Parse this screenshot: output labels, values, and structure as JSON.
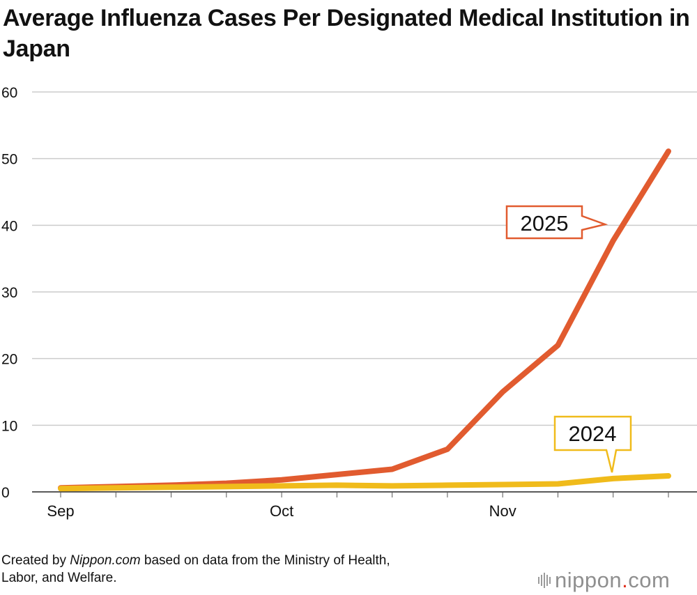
{
  "title": "Average Influenza Cases Per Designated Medical Institution in Japan",
  "source": {
    "prefix": "Created by ",
    "brand": "Nippon.com",
    "suffix_line1": " based on data from the Ministry of Health,",
    "line2": "Labor, and Welfare."
  },
  "logo": {
    "name": "nippon",
    "dot": ".",
    "tld": "com"
  },
  "colors": {
    "series_2025": "#e15b2f",
    "series_2024": "#f0bb1b",
    "grid": "#cccccc",
    "logo_dot": "#e0301e"
  },
  "chart_data": {
    "type": "line",
    "title": "Average Influenza Cases Per Designated Medical Institution in Japan",
    "xlabel": "",
    "ylabel": "",
    "ylim": [
      0,
      60
    ],
    "yticks": [
      0,
      10,
      20,
      30,
      40,
      50,
      60
    ],
    "grid": true,
    "x": [
      1,
      2,
      3,
      4,
      5,
      6,
      7,
      8,
      9,
      10,
      11,
      12
    ],
    "x_tick_labels": [
      {
        "x": 1,
        "label": "Sep"
      },
      {
        "x": 5,
        "label": "Oct"
      },
      {
        "x": 9,
        "label": "Nov"
      }
    ],
    "series": [
      {
        "name": "2025",
        "color": "#e15b2f",
        "values": [
          0.6,
          0.8,
          1.0,
          1.3,
          1.8,
          2.6,
          3.4,
          6.4,
          15.0,
          22.0,
          37.7,
          51.1
        ]
      },
      {
        "name": "2024",
        "color": "#f0bb1b",
        "values": [
          0.5,
          0.6,
          0.7,
          0.8,
          0.9,
          1.0,
          0.9,
          1.0,
          1.1,
          1.2,
          2.0,
          2.4
        ]
      }
    ],
    "annotations": [
      {
        "text": "2025",
        "series": "2025",
        "points_to_x": 11
      },
      {
        "text": "2024",
        "series": "2024",
        "points_to_x": 11
      }
    ],
    "legend": "inline-callouts"
  }
}
